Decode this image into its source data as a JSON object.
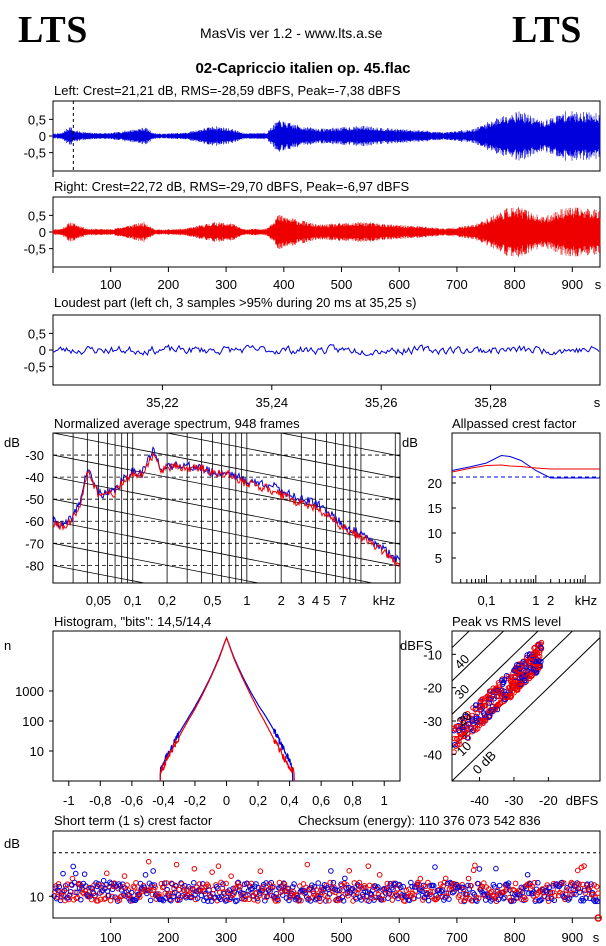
{
  "header": {
    "logo_left": "LTS",
    "logo_right": "LTS",
    "app_title": "MasVis ver 1.2 - www.lts.a.se",
    "track_title": "02-Capriccio italien op. 45.flac"
  },
  "colors": {
    "left": "#0000dd",
    "right": "#ee0000",
    "grid": "#000000"
  },
  "panels": {
    "left_wave": "Left: Crest=21,21 dB, RMS=-28,59 dBFS, Peak=-7,38 dBFS",
    "right_wave": "Right: Crest=22,72 dB, RMS=-29,70 dBFS, Peak=-6,97 dBFS",
    "loudest": "Loudest part (left  ch, 3 samples >95% during 20 ms at 35,25 s)",
    "spectrum": "Normalized average spectrum, 948 frames",
    "allpassed": "Allpassed crest factor",
    "histogram": "Histogram, \"bits\": 14,5/14,4",
    "peak_rms": "Peak vs RMS level",
    "short_term": "Short term (1 s) crest factor",
    "checksum": "Checksum (energy):   110 376 073 542 836"
  },
  "chart_data": [
    {
      "type": "line",
      "name": "left-waveform",
      "title": "Left: Crest=21,21 dB, RMS=-28,59 dBFS, Peak=-7,38 dBFS",
      "yticks": [
        "0,5",
        "0",
        "-0,5"
      ],
      "ylim": [
        -1,
        1
      ],
      "xlim": [
        0,
        948
      ],
      "marker_at_s": 35.25,
      "envelope": {
        "x": [
          0,
          15,
          30,
          35,
          60,
          100,
          160,
          175,
          190,
          230,
          280,
          310,
          330,
          370,
          390,
          430,
          460,
          500,
          540,
          590,
          640,
          680,
          730,
          750,
          790,
          810,
          850,
          870,
          890,
          948
        ],
        "amplitude": [
          0.08,
          0.1,
          0.35,
          0.2,
          0.12,
          0.1,
          0.3,
          0.1,
          0.08,
          0.12,
          0.35,
          0.25,
          0.1,
          0.12,
          0.55,
          0.35,
          0.25,
          0.3,
          0.35,
          0.25,
          0.2,
          0.12,
          0.25,
          0.45,
          0.8,
          0.85,
          0.5,
          0.7,
          0.85,
          0.8
        ]
      }
    },
    {
      "type": "line",
      "name": "right-waveform",
      "title": "Right: Crest=22,72 dB, RMS=-29,70 dBFS, Peak=-6,97 dBFS",
      "xticks": [
        100,
        200,
        300,
        400,
        500,
        600,
        700,
        800,
        900
      ],
      "xlabel": "s",
      "yticks": [
        "0,5",
        "0",
        "-0,5"
      ],
      "ylim": [
        -1,
        1
      ],
      "xlim": [
        0,
        948
      ],
      "envelope": {
        "x": [
          0,
          15,
          30,
          60,
          100,
          160,
          175,
          190,
          230,
          280,
          310,
          330,
          370,
          390,
          430,
          460,
          500,
          540,
          590,
          640,
          680,
          730,
          750,
          790,
          810,
          850,
          870,
          890,
          948
        ],
        "amplitude": [
          0.1,
          0.12,
          0.35,
          0.12,
          0.1,
          0.35,
          0.1,
          0.08,
          0.12,
          0.35,
          0.3,
          0.1,
          0.12,
          0.6,
          0.4,
          0.25,
          0.3,
          0.35,
          0.25,
          0.2,
          0.12,
          0.25,
          0.45,
          0.85,
          0.85,
          0.5,
          0.7,
          0.85,
          0.8
        ]
      }
    },
    {
      "type": "line",
      "name": "loudest-part",
      "title": "Loudest part (left  ch, 3 samples >95% during 20 ms at 35,25 s)",
      "xticks": [
        35.22,
        35.24,
        35.26,
        35.28
      ],
      "xtick_labels": [
        "35,22",
        "35,24",
        "35,26",
        "35,28"
      ],
      "xlabel": "s",
      "xlim": [
        35.2,
        35.3
      ],
      "yticks": [
        "0,5",
        "0",
        "-0,5"
      ],
      "ylim": [
        -1,
        1
      ],
      "amplitude": 0.15
    },
    {
      "type": "line",
      "name": "average-spectrum",
      "title": "Normalized average spectrum, 948 frames",
      "ylabel": "dB",
      "yticks": [
        -30,
        -40,
        -50,
        -60,
        -70,
        -80
      ],
      "ylim": [
        -88,
        -20
      ],
      "xlabel": "kHz",
      "xlim_khz": [
        0.02,
        22
      ],
      "xtick_labels": [
        "0,05",
        "0,1",
        "0,2",
        "0,5",
        "1",
        "2",
        "3",
        "4",
        "5",
        "7"
      ],
      "xtick_values": [
        0.05,
        0.1,
        0.2,
        0.5,
        1,
        2,
        3,
        4,
        5,
        7
      ],
      "series": [
        {
          "name": "left",
          "x": [
            0.02,
            0.025,
            0.03,
            0.035,
            0.04,
            0.045,
            0.05,
            0.06,
            0.07,
            0.08,
            0.1,
            0.12,
            0.15,
            0.18,
            0.2,
            0.25,
            0.3,
            0.4,
            0.5,
            0.7,
            1,
            1.5,
            2,
            3,
            4,
            5,
            7,
            10,
            15,
            22
          ],
          "y": [
            -60,
            -62,
            -58,
            -50,
            -36,
            -42,
            -47,
            -48,
            -46,
            -42,
            -37,
            -38,
            -28,
            -36,
            -36,
            -34,
            -35,
            -36,
            -38,
            -38,
            -42,
            -43,
            -46,
            -50,
            -52,
            -55,
            -62,
            -66,
            -72,
            -78
          ]
        },
        {
          "name": "right",
          "x": [
            0.02,
            0.025,
            0.03,
            0.035,
            0.04,
            0.045,
            0.05,
            0.06,
            0.07,
            0.08,
            0.1,
            0.12,
            0.15,
            0.18,
            0.2,
            0.25,
            0.3,
            0.4,
            0.5,
            0.7,
            1,
            1.5,
            2,
            3,
            4,
            5,
            7,
            10,
            15,
            22
          ],
          "y": [
            -61,
            -63,
            -59,
            -51,
            -37,
            -43,
            -48,
            -48,
            -47,
            -43,
            -38,
            -39,
            -30,
            -37,
            -36,
            -35,
            -36,
            -36,
            -38,
            -39,
            -43,
            -45,
            -48,
            -52,
            -54,
            -57,
            -63,
            -67,
            -73,
            -80
          ]
        }
      ]
    },
    {
      "type": "line",
      "name": "allpassed-crest",
      "title": "Allpassed crest factor",
      "ylabel": "dB",
      "yticks": [
        20,
        15,
        10,
        5
      ],
      "ylim": [
        0,
        30
      ],
      "xlabel": "kHz",
      "xtick_labels": [
        "0,1",
        "1",
        "2"
      ],
      "xtick_values": [
        0.1,
        1,
        2
      ],
      "reference_level": 21.2,
      "series": [
        {
          "name": "left",
          "x": [
            0.02,
            0.05,
            0.1,
            0.2,
            0.3,
            0.5,
            1,
            2,
            5,
            20
          ],
          "y": [
            22.5,
            23.3,
            24.0,
            25.5,
            25.3,
            24.5,
            22.5,
            21.0,
            21.0,
            21.0
          ]
        },
        {
          "name": "right",
          "x": [
            0.02,
            0.05,
            0.1,
            0.2,
            0.3,
            0.5,
            1,
            2,
            5,
            20
          ],
          "y": [
            22.2,
            23.0,
            23.5,
            23.6,
            23.4,
            23.3,
            23.0,
            22.8,
            22.8,
            22.8
          ]
        }
      ]
    },
    {
      "type": "line",
      "name": "histogram",
      "title": "Histogram, \"bits\": 14,5/14,4",
      "ylabel": "n",
      "yscale": "log",
      "yticks": [
        1000,
        100,
        10
      ],
      "ylim": [
        1,
        100000
      ],
      "xticks": [
        -1,
        -0.8,
        -0.6,
        -0.4,
        -0.2,
        0,
        0.2,
        0.4,
        0.6,
        0.8,
        1
      ],
      "xtick_labels": [
        "-1",
        "-0,8",
        "-0,6",
        "-0,4",
        "-0,2",
        "0",
        "0,2",
        "0,4",
        "0,6",
        "0,8",
        "1"
      ],
      "series": [
        {
          "name": "left",
          "x": [
            -0.42,
            -0.4,
            -0.35,
            -0.3,
            -0.25,
            -0.2,
            -0.15,
            -0.1,
            -0.05,
            0,
            0.05,
            0.1,
            0.15,
            0.2,
            0.25,
            0.3,
            0.35,
            0.4,
            0.42
          ],
          "y": [
            2,
            4,
            12,
            40,
            110,
            300,
            900,
            3000,
            12000,
            60000,
            12000,
            3200,
            1000,
            350,
            140,
            50,
            15,
            5,
            2
          ]
        },
        {
          "name": "right",
          "x": [
            -0.42,
            -0.4,
            -0.35,
            -0.3,
            -0.25,
            -0.2,
            -0.15,
            -0.1,
            -0.05,
            0,
            0.05,
            0.1,
            0.15,
            0.2,
            0.25,
            0.3,
            0.35,
            0.4,
            0.43
          ],
          "y": [
            2,
            3,
            10,
            30,
            90,
            250,
            800,
            2800,
            11000,
            60000,
            11000,
            2800,
            800,
            240,
            80,
            25,
            8,
            3,
            2
          ]
        }
      ]
    },
    {
      "type": "scatter",
      "name": "peak-vs-rms",
      "title": "Peak vs RMS level",
      "ylabel": "dBFS",
      "xlabel": "dBFS",
      "yticks": [
        -10,
        -20,
        -30,
        -40
      ],
      "xticks": [
        -40,
        -30,
        -20
      ],
      "xlim": [
        -48,
        -5
      ],
      "ylim": [
        -48,
        -3
      ],
      "crest_lines_db": [
        0,
        10,
        20,
        30,
        40
      ],
      "crest_line_labels": [
        "0 dB",
        "10",
        "20",
        "30",
        "40"
      ],
      "point_cloud": {
        "rms_range": [
          -48,
          -22
        ],
        "crest_center_db": 12,
        "crest_spread_db": 4
      }
    },
    {
      "type": "scatter",
      "name": "short-term-crest",
      "title": "Short term (1 s) crest factor",
      "ylabel": "dB",
      "yticks": [
        10
      ],
      "ylim": [
        5,
        25
      ],
      "xticks": [
        100,
        200,
        300,
        400,
        500,
        600,
        700,
        800,
        900
      ],
      "xlabel": "s",
      "xlim": [
        0,
        948
      ],
      "reference_level": 20,
      "level": {
        "center": 11,
        "spread": 2.2
      },
      "outlier": {
        "x": 945,
        "y": 5
      }
    }
  ]
}
